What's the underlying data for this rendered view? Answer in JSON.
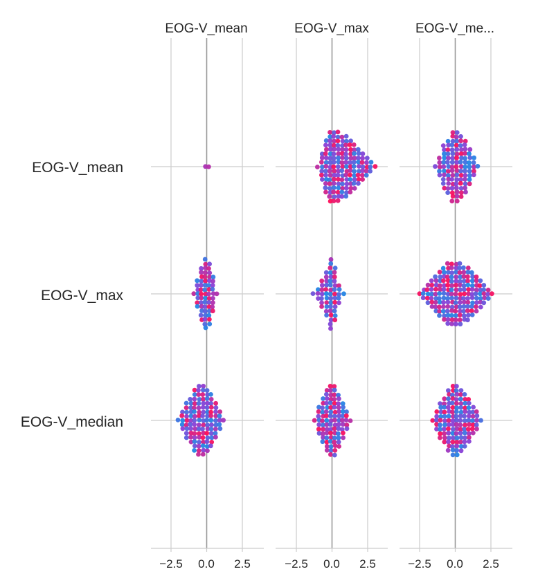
{
  "chart_data": {
    "type": "scatter",
    "variant": "beeswarm-interaction-matrix",
    "columns": [
      {
        "title": "EOG-V_mean"
      },
      {
        "title": "EOG-V_max"
      },
      {
        "title": "EOG-V_me..."
      }
    ],
    "rows": [
      {
        "label": "EOG-V_mean"
      },
      {
        "label": "EOG-V_max"
      },
      {
        "label": "EOG-V_median"
      }
    ],
    "xlim": [
      -4,
      4
    ],
    "x_ticks": [
      -2.5,
      0.0,
      2.5
    ],
    "x_tick_labels": [
      "−2.5",
      "0.0",
      "2.5"
    ],
    "gridlines": true,
    "zero_line": true,
    "colors": {
      "low": "#1e88e5",
      "mid": "#8a3fd6",
      "high": "#ff0d57",
      "grid": "#cccccc",
      "zero_line": "#999999",
      "spine": "#cccccc"
    },
    "cells": [
      [
        {
          "min": -0.1,
          "max": 0.1,
          "spread": 0.85,
          "peak": 0.0
        },
        {
          "min": -1.0,
          "max": 3.0,
          "spread": 0.85,
          "peak": 0.0
        },
        {
          "min": -1.4,
          "max": 1.6,
          "spread": 0.85,
          "peak": 0.0
        }
      ],
      [
        {
          "min": -0.9,
          "max": 0.7,
          "spread": 0.85,
          "peak": 0.0
        },
        {
          "min": -1.3,
          "max": 0.8,
          "spread": 0.85,
          "peak": 0.0
        },
        {
          "min": -2.5,
          "max": 2.6,
          "spread": 0.75,
          "peak": 0.0
        }
      ],
      [
        {
          "min": -2.0,
          "max": 1.2,
          "spread": 0.85,
          "peak": -0.3
        },
        {
          "min": -1.2,
          "max": 1.3,
          "spread": 0.85,
          "peak": 0.0
        },
        {
          "min": -1.6,
          "max": 1.8,
          "spread": 0.85,
          "peak": 0.0
        }
      ]
    ]
  }
}
